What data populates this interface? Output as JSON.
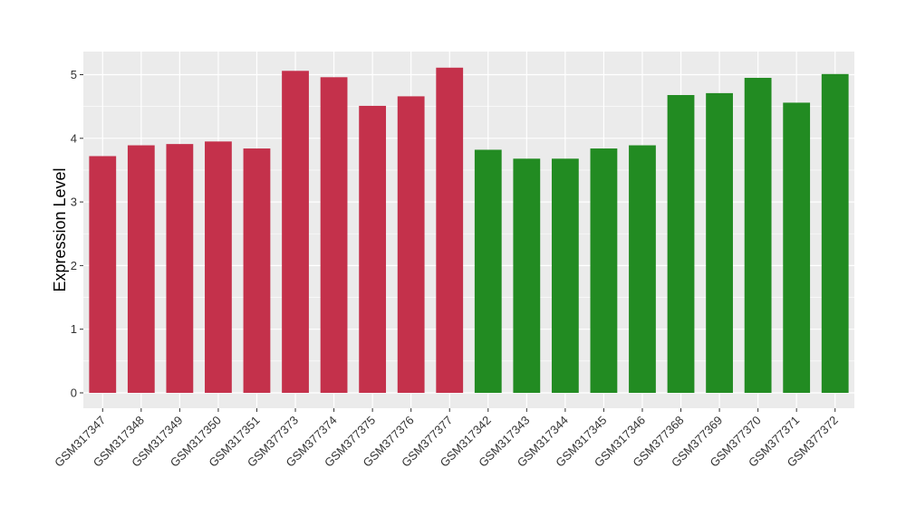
{
  "chart_data": {
    "type": "bar",
    "title": "",
    "xlabel": "",
    "ylabel": "Expression Level",
    "ylim": [
      0,
      5.3
    ],
    "yticks": [
      0,
      1,
      2,
      3,
      4,
      5
    ],
    "grid": true,
    "legend": "none",
    "colors": {
      "group_1": "#C4314B",
      "group_2": "#228B22",
      "panel_background": "#EBEBEB",
      "gridline": "#FFFFFF"
    },
    "categories": [
      "GSM317347",
      "GSM317348",
      "GSM317349",
      "GSM317350",
      "GSM317351",
      "GSM377373",
      "GSM377374",
      "GSM377375",
      "GSM377376",
      "GSM377377",
      "GSM317342",
      "GSM317343",
      "GSM317344",
      "GSM317345",
      "GSM317346",
      "GSM377368",
      "GSM377369",
      "GSM377370",
      "GSM377371",
      "GSM377372"
    ],
    "values": [
      3.72,
      3.89,
      3.91,
      3.95,
      3.84,
      5.06,
      4.96,
      4.51,
      4.66,
      5.11,
      3.82,
      3.68,
      3.68,
      3.84,
      3.89,
      4.68,
      4.71,
      4.95,
      4.56,
      5.01
    ],
    "bar_groups": [
      "group_1",
      "group_1",
      "group_1",
      "group_1",
      "group_1",
      "group_1",
      "group_1",
      "group_1",
      "group_1",
      "group_1",
      "group_2",
      "group_2",
      "group_2",
      "group_2",
      "group_2",
      "group_2",
      "group_2",
      "group_2",
      "group_2",
      "group_2"
    ]
  }
}
